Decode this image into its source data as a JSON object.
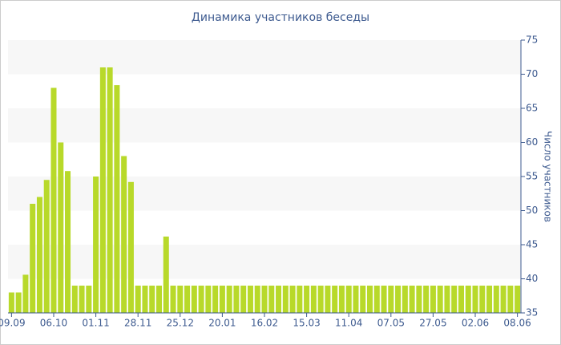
{
  "chart_data": {
    "type": "bar",
    "title": "Динамика участников беседы",
    "y_axis_label": "Число участников",
    "categories": [
      "09.09",
      null,
      null,
      null,
      null,
      null,
      "06.10",
      null,
      null,
      null,
      null,
      null,
      "01.11",
      null,
      null,
      null,
      null,
      null,
      "28.11",
      null,
      null,
      null,
      null,
      null,
      "25.12",
      null,
      null,
      null,
      null,
      null,
      "20.01",
      null,
      null,
      null,
      null,
      null,
      "16.02",
      null,
      null,
      null,
      null,
      null,
      "15.03",
      null,
      null,
      null,
      null,
      null,
      "11.04",
      null,
      null,
      null,
      null,
      null,
      "07.05",
      null,
      null,
      null,
      null,
      null,
      "27.05",
      null,
      null,
      null,
      null,
      null,
      "02.06",
      null,
      null,
      null,
      null,
      null,
      "08.06"
    ],
    "values": [
      38,
      38,
      40.6,
      51,
      52,
      54.5,
      68,
      60,
      55.8,
      39,
      39,
      39,
      55,
      71,
      71,
      68.4,
      58,
      54.2,
      39,
      39,
      39,
      39,
      46.2,
      39,
      39,
      39,
      39,
      39,
      39,
      39,
      39,
      39,
      39,
      39,
      39,
      39,
      39,
      39,
      39,
      39,
      39,
      39,
      39,
      39,
      39,
      39,
      39,
      39,
      39,
      39,
      39,
      39,
      39,
      39,
      39,
      39,
      39,
      39,
      39,
      39,
      39,
      39,
      39,
      39,
      39,
      39,
      39,
      39,
      39,
      39,
      39,
      39,
      39
    ],
    "color": "#b8d92a",
    "ylim": [
      35,
      75
    ],
    "yticks": [
      35,
      40,
      45,
      50,
      55,
      60,
      65,
      70,
      75
    ],
    "y_axis_side": "right",
    "banded_background": true
  }
}
